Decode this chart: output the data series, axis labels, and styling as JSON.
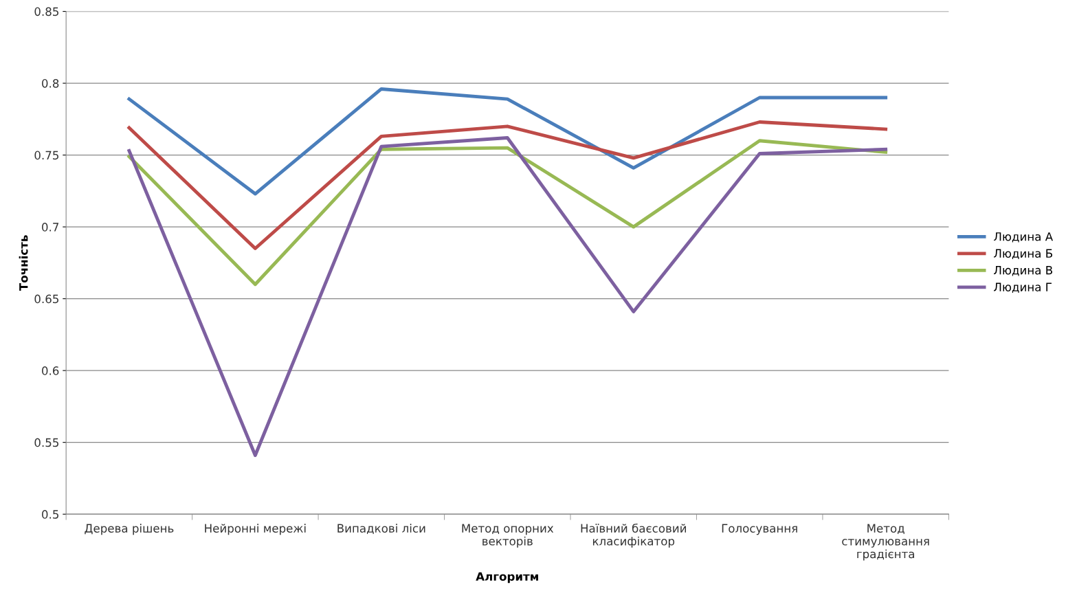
{
  "chart_data": {
    "type": "line",
    "xlabel": "Алгоритм",
    "ylabel": "Точність",
    "categories": [
      "Дерева рішень",
      "Нейронні мережі",
      "Випадкові ліси",
      "Метод опорних\nвекторів",
      "Наївний баєсовий\nкласифікатор",
      "Голосування",
      "Метод\nстимулювання\nградієнта"
    ],
    "series": [
      {
        "name": "Людина А",
        "color": "#4a7ebb",
        "values": [
          0.789,
          0.723,
          0.796,
          0.789,
          0.741,
          0.79,
          0.79
        ]
      },
      {
        "name": "Людина Б",
        "color": "#be4b48",
        "values": [
          0.769,
          0.685,
          0.763,
          0.77,
          0.748,
          0.773,
          0.768
        ]
      },
      {
        "name": "Людина В",
        "color": "#98b954",
        "values": [
          0.749,
          0.66,
          0.754,
          0.755,
          0.7,
          0.76,
          0.752
        ]
      },
      {
        "name": "Людина Г",
        "color": "#7d60a0",
        "values": [
          0.753,
          0.541,
          0.756,
          0.762,
          0.641,
          0.751,
          0.754
        ]
      }
    ],
    "ylim": [
      0.5,
      0.85
    ],
    "yticks": [
      0.5,
      0.55,
      0.6,
      0.65,
      0.7,
      0.75,
      0.8,
      0.85
    ],
    "grid": "y",
    "legend": "right",
    "marker": "none",
    "line_style": "solid"
  }
}
